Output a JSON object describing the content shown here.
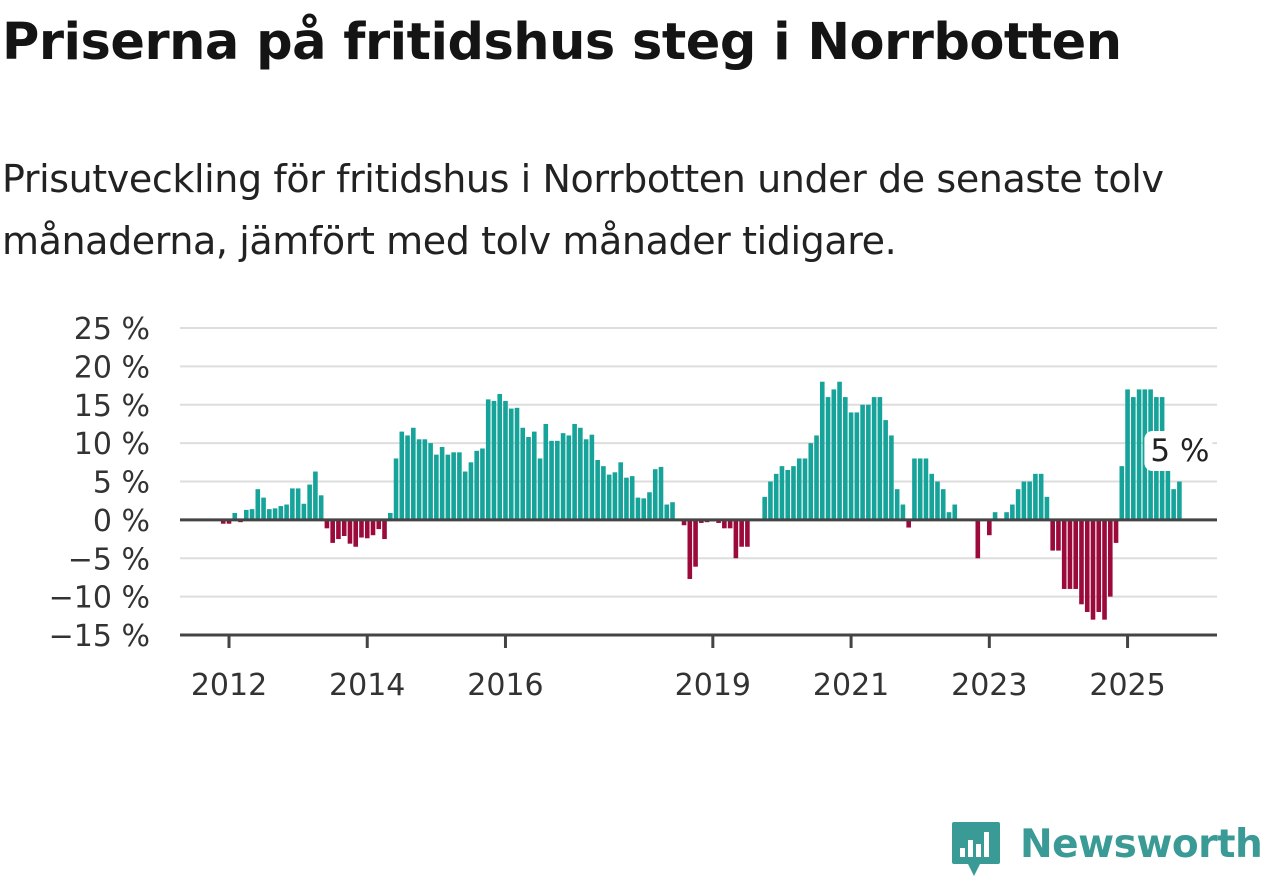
{
  "title": "Priserna på fritidshus steg i Norrbotten",
  "subtitle": "Prisutveckling för fritidshus i Norrbotten under de senaste tolv månaderna, jämfört med tolv månader tidigare.",
  "brand": {
    "name": "Newsworthy",
    "color": "#3a9a96"
  },
  "colors": {
    "positive": "#16a39a",
    "negative": "#9b0a3a",
    "grid": "#dddddd",
    "axis": "#444444"
  },
  "chart_data": {
    "type": "bar",
    "ylim": [
      -15,
      25
    ],
    "grid": true,
    "y_ticks": [
      {
        "value": 25,
        "label": "25 %"
      },
      {
        "value": 20,
        "label": "20 %"
      },
      {
        "value": 15,
        "label": "15 %"
      },
      {
        "value": 10,
        "label": "10 %"
      },
      {
        "value": 5,
        "label": "5 %"
      },
      {
        "value": 0,
        "label": "0 %"
      },
      {
        "value": -5,
        "label": "−5 %"
      },
      {
        "value": -10,
        "label": "−10 %"
      },
      {
        "value": -15,
        "label": "−15 %"
      }
    ],
    "x_ticks": [
      {
        "index": 5,
        "label": "2012"
      },
      {
        "index": 29,
        "label": "2014"
      },
      {
        "index": 53,
        "label": "2016"
      },
      {
        "index": 89,
        "label": "2019"
      },
      {
        "index": 113,
        "label": "2021"
      },
      {
        "index": 137,
        "label": "2023"
      },
      {
        "index": 161,
        "label": "2025"
      }
    ],
    "last_value_label": "5 %",
    "values": [
      0,
      0,
      0,
      0,
      -0.5,
      -0.5,
      0.9,
      -0.3,
      1.3,
      1.4,
      4.0,
      2.9,
      1.4,
      1.5,
      1.8,
      2.0,
      4.1,
      4.1,
      2.1,
      4.6,
      6.3,
      3.2,
      -1.1,
      -3.0,
      -2.5,
      -2.1,
      -3.1,
      -3.5,
      -2.3,
      -2.4,
      -2.0,
      -1.2,
      -2.5,
      0.9,
      8.0,
      11.5,
      11.0,
      12.0,
      10.5,
      10.5,
      10.0,
      8.5,
      9.5,
      8.5,
      8.8,
      8.8,
      6.3,
      7.5,
      9.0,
      9.3,
      15.7,
      15.5,
      16.4,
      15.5,
      14.5,
      14.6,
      12.0,
      10.8,
      11.5,
      8.0,
      12.5,
      10.3,
      10.3,
      11.3,
      11.0,
      12.5,
      12.0,
      10.5,
      11.1,
      7.8,
      7.0,
      5.9,
      6.2,
      7.5,
      5.5,
      5.7,
      2.9,
      2.8,
      3.6,
      6.6,
      6.9,
      2.0,
      2.3,
      0,
      -0.7,
      -7.7,
      -6.1,
      -0.4,
      -0.3,
      -0.2,
      -0.4,
      -1.1,
      -1.1,
      -5.0,
      -3.5,
      -3.5,
      0,
      0,
      3.0,
      5.0,
      6.0,
      7.0,
      6.5,
      7.0,
      8.0,
      8.0,
      10.0,
      11.0,
      18.0,
      16.0,
      17.0,
      18.0,
      16.0,
      14.0,
      14.0,
      15.0,
      15.0,
      16.0,
      16.0,
      13.0,
      11.0,
      4.0,
      2.0,
      -1.0,
      8.0,
      8.0,
      8.0,
      6.0,
      5.0,
      4.0,
      1.0,
      2.0,
      0,
      0,
      0,
      -5.0,
      0,
      -2.0,
      1.0,
      0,
      1.0,
      2.0,
      4.0,
      5.0,
      5.0,
      6.0,
      6.0,
      3.0,
      -4.0,
      -4.0,
      -9.0,
      -9.0,
      -9.0,
      -11.0,
      -12.0,
      -13.0,
      -12.0,
      -13.0,
      -10.0,
      -3.0,
      7.0,
      17.0,
      16.0,
      17.0,
      17.0,
      17.0,
      16.0,
      16.0,
      7.0,
      4.0,
      5.0
    ]
  }
}
